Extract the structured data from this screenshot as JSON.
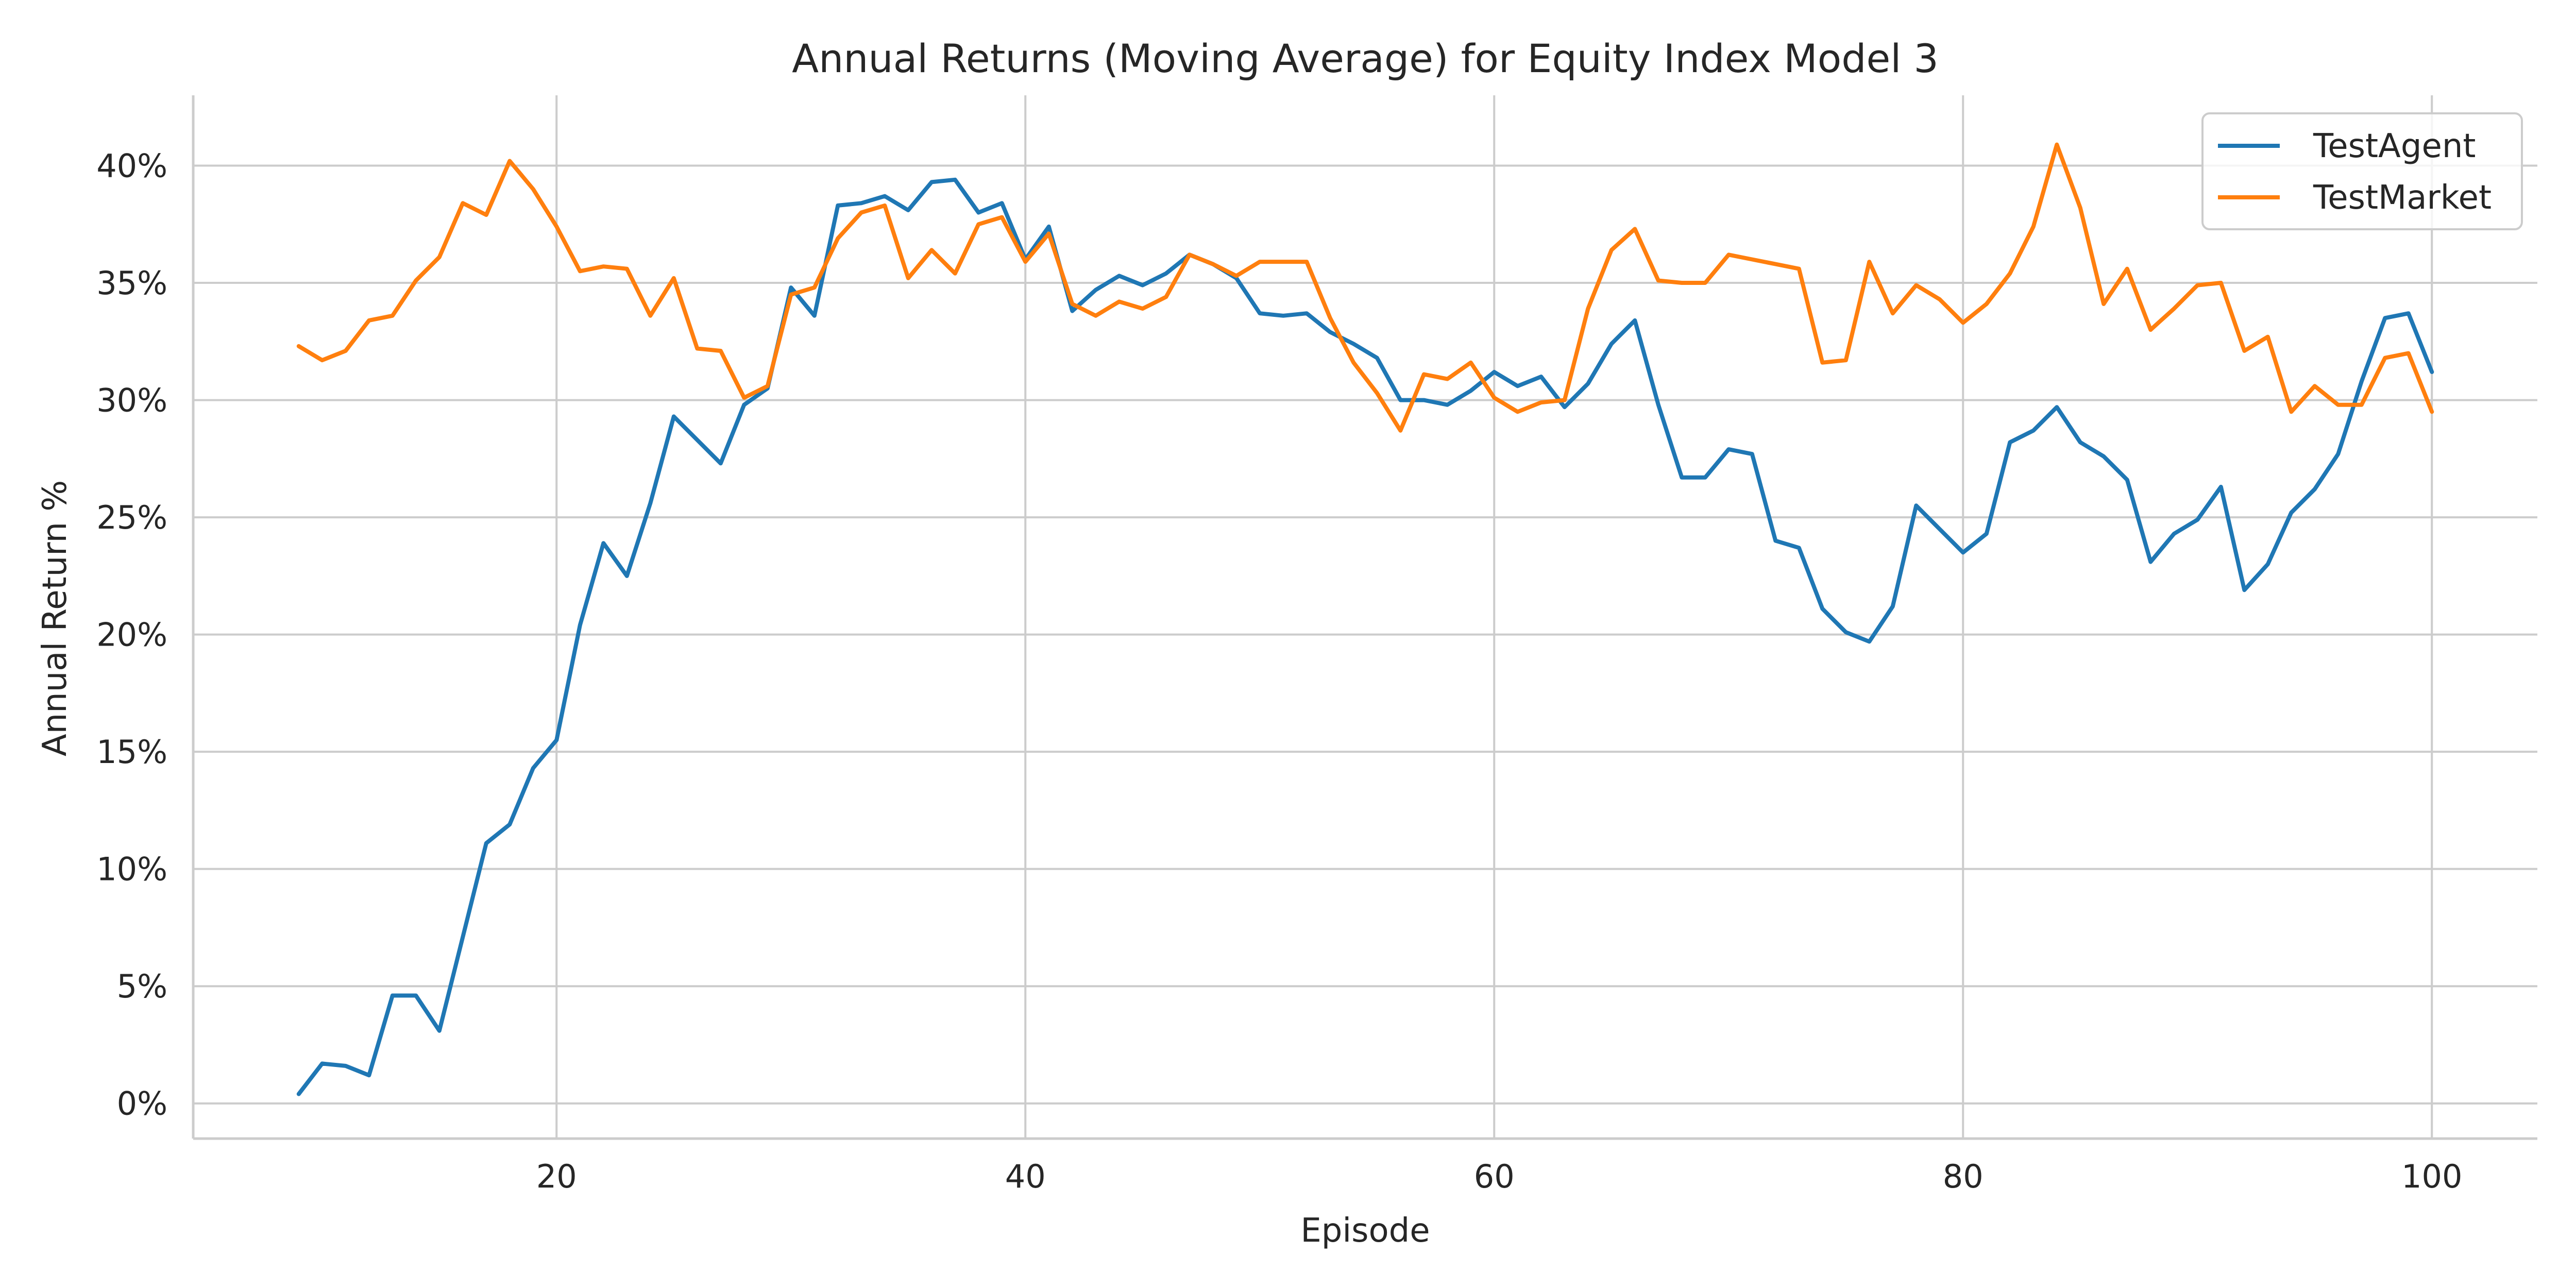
{
  "chart_data": {
    "type": "line",
    "title": "Annual Returns (Moving Average) for Equity Index Model 3",
    "xlabel": "Episode",
    "ylabel": "Annual Return %",
    "xlim": [
      4.5,
      104.5
    ],
    "ylim": [
      -1.5,
      43
    ],
    "x_ticks": [
      20,
      40,
      60,
      80,
      100
    ],
    "y_ticks": [
      0,
      5,
      10,
      15,
      20,
      25,
      30,
      35,
      40
    ],
    "y_tick_labels": [
      "0%",
      "5%",
      "10%",
      "15%",
      "20%",
      "25%",
      "30%",
      "35%",
      "40%"
    ],
    "grid": true,
    "legend_position": "top-right",
    "x": [
      9,
      10,
      11,
      12,
      13,
      14,
      15,
      16,
      17,
      18,
      19,
      20,
      21,
      22,
      23,
      24,
      25,
      26,
      27,
      28,
      29,
      30,
      31,
      32,
      33,
      34,
      35,
      36,
      37,
      38,
      39,
      40,
      41,
      42,
      43,
      44,
      45,
      46,
      47,
      48,
      49,
      50,
      51,
      52,
      53,
      54,
      55,
      56,
      57,
      58,
      59,
      60,
      61,
      62,
      63,
      64,
      65,
      66,
      67,
      68,
      69,
      70,
      71,
      72,
      73,
      74,
      75,
      76,
      77,
      78,
      79,
      80,
      81,
      82,
      83,
      84,
      85,
      86,
      87,
      88,
      89,
      90,
      91,
      92,
      93,
      94,
      95,
      96,
      97,
      98,
      99,
      100
    ],
    "series": [
      {
        "name": "TestAgent",
        "color": "#1f77b4",
        "values": [
          0.4,
          1.7,
          1.6,
          1.2,
          4.6,
          4.6,
          3.1,
          7.1,
          11.1,
          11.9,
          14.3,
          15.5,
          20.4,
          23.9,
          22.5,
          25.6,
          29.3,
          28.3,
          27.3,
          29.8,
          30.5,
          34.8,
          33.6,
          38.3,
          38.4,
          38.7,
          38.1,
          39.3,
          39.4,
          38.0,
          38.4,
          36.0,
          37.4,
          33.8,
          34.7,
          35.3,
          34.9,
          35.4,
          36.2,
          35.8,
          35.2,
          33.7,
          33.6,
          33.7,
          32.9,
          32.4,
          31.8,
          30.0,
          30.0,
          29.8,
          30.4,
          31.2,
          30.6,
          31.0,
          29.7,
          30.7,
          32.4,
          33.4,
          29.8,
          26.7,
          26.7,
          27.9,
          27.7,
          24.0,
          23.7,
          21.1,
          20.1,
          19.7,
          21.2,
          25.5,
          24.5,
          23.5,
          24.3,
          28.2,
          28.7,
          29.7,
          28.2,
          27.6,
          26.6,
          23.1,
          24.3,
          24.9,
          26.3,
          21.9,
          23.0,
          25.2,
          26.2,
          27.7,
          30.8,
          33.5,
          33.7,
          31.2
        ]
      },
      {
        "name": "TestMarket",
        "color": "#ff7f0e",
        "values": [
          32.3,
          31.7,
          32.1,
          33.4,
          33.6,
          35.1,
          36.1,
          38.4,
          37.9,
          40.2,
          39.0,
          37.4,
          35.5,
          35.7,
          35.6,
          33.6,
          35.2,
          32.2,
          32.1,
          30.1,
          30.6,
          34.5,
          34.8,
          36.9,
          38.0,
          38.3,
          35.2,
          36.4,
          35.4,
          37.5,
          37.8,
          35.9,
          37.1,
          34.1,
          33.6,
          34.2,
          33.9,
          34.4,
          36.2,
          35.8,
          35.3,
          35.9,
          35.9,
          35.9,
          33.5,
          31.6,
          30.3,
          28.7,
          31.1,
          30.9,
          31.6,
          30.1,
          29.5,
          29.9,
          30.0,
          33.9,
          36.4,
          37.3,
          35.1,
          35.0,
          35.0,
          36.2,
          36.0,
          35.8,
          35.6,
          31.6,
          31.7,
          35.9,
          33.7,
          34.9,
          34.3,
          33.3,
          34.1,
          35.4,
          37.4,
          40.9,
          38.2,
          34.1,
          35.6,
          33.0,
          33.9,
          34.9,
          35.0,
          32.1,
          32.7,
          29.5,
          30.6,
          29.8,
          29.8,
          31.8,
          32.0,
          29.5
        ]
      }
    ]
  }
}
